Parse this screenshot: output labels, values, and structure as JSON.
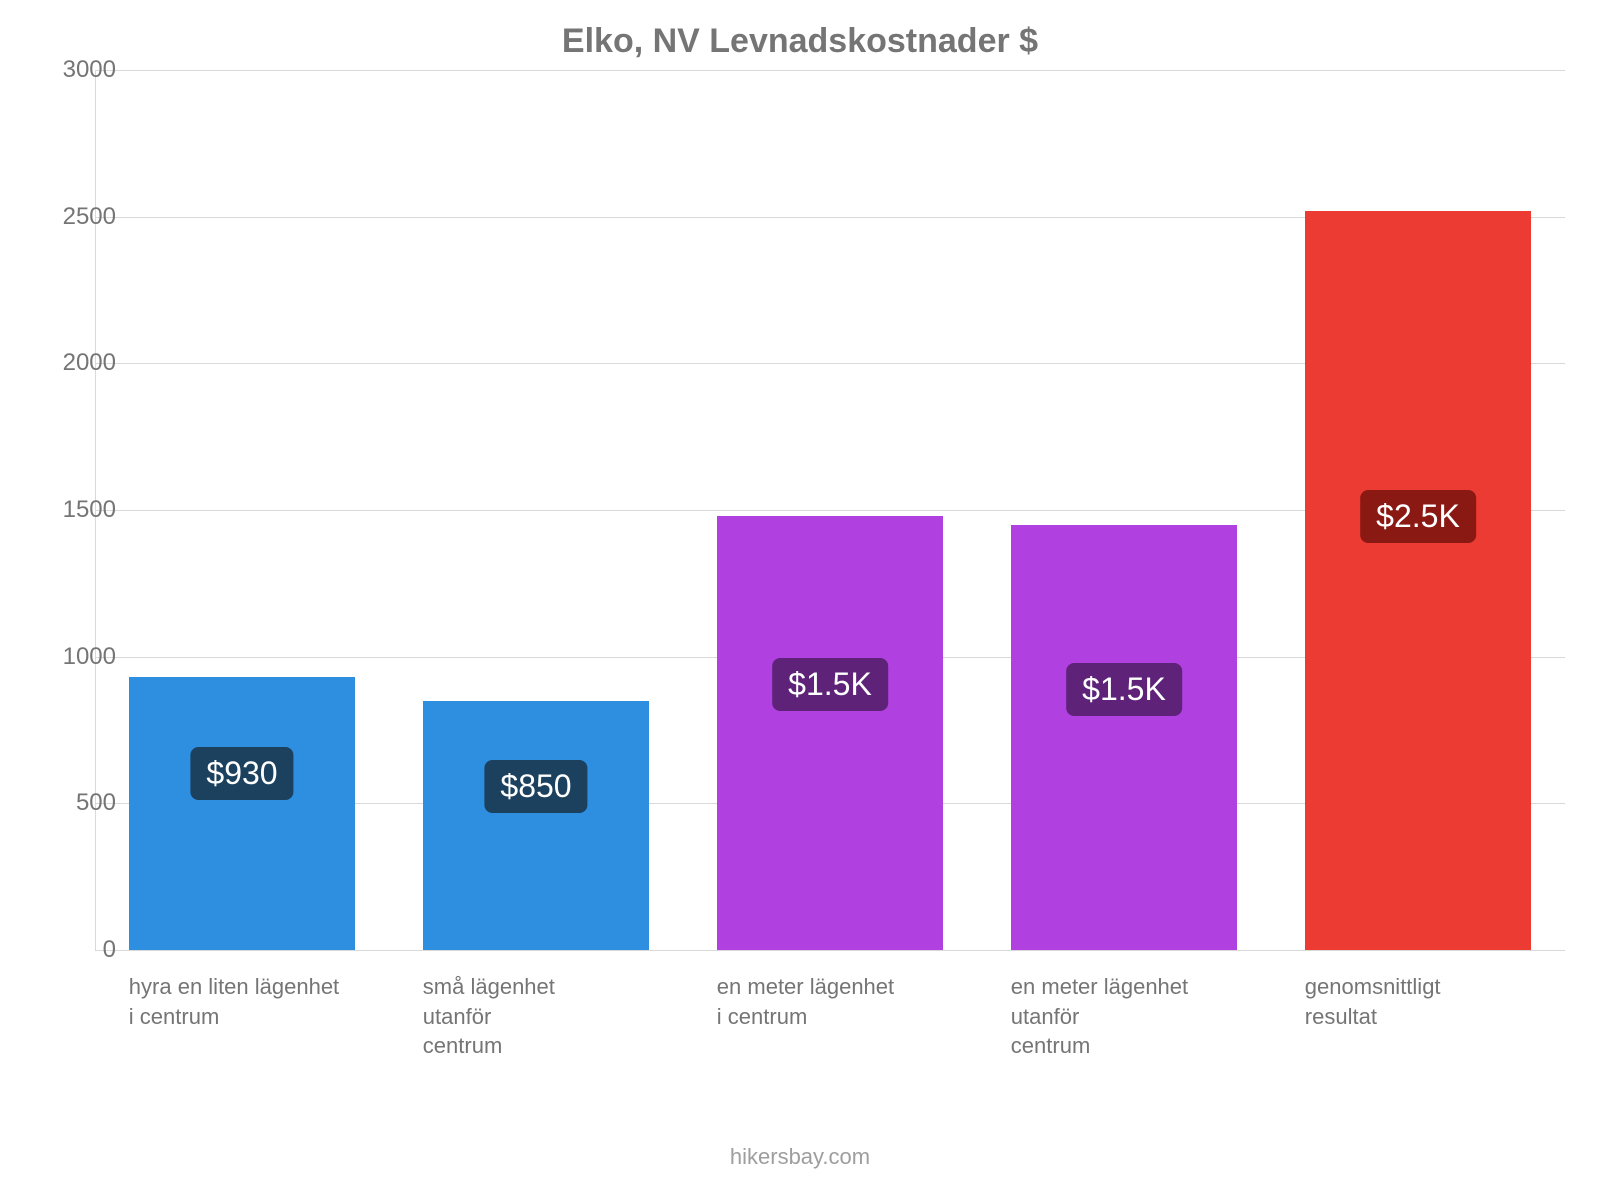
{
  "chart": {
    "type": "bar",
    "title": "Elko, NV Levnadskostnader $",
    "title_fontsize": 34,
    "title_color": "#757575",
    "background_color": "#ffffff",
    "grid_color": "#d9d9d9",
    "tick_color": "#757575",
    "tick_fontsize": 24,
    "xlabel_fontsize": 22,
    "ylim": [
      0,
      3000
    ],
    "ytick_step": 500,
    "yticks": [
      "0",
      "500",
      "1000",
      "1500",
      "2000",
      "2500",
      "3000"
    ],
    "bar_width_pct": 15.4,
    "bar_gap_pct": 4.6,
    "categories": [
      "hyra en liten lägenhet\ni centrum",
      "små lägenhet\nutanför\ncentrum",
      "en meter lägenhet\ni centrum",
      "en meter lägenhet\nutanför\ncentrum",
      "genomsnittligt\nresultat"
    ],
    "values": [
      930,
      850,
      1480,
      1450,
      2520
    ],
    "value_labels": [
      "$930",
      "$850",
      "$1.5K",
      "$1.5K",
      "$2.5K"
    ],
    "bar_colors": [
      "#2e8ee0",
      "#2e8ee0",
      "#b041e0",
      "#b041e0",
      "#ec3b33"
    ],
    "label_box_colors": [
      "#1c415e",
      "#1c415e",
      "#5e2278",
      "#5e2278",
      "#8a1914"
    ],
    "label_text_color": "#ffffff",
    "label_fontsize": 32,
    "footer": "hikersbay.com",
    "footer_color": "#9e9e9e",
    "footer_fontsize": 22
  }
}
